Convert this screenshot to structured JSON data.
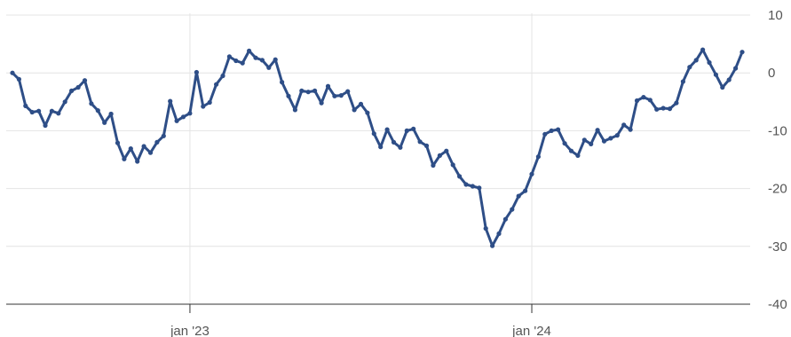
{
  "chart_data": {
    "type": "line",
    "title": "",
    "xlabel": "",
    "ylabel": "",
    "x_start": "2022-06-27",
    "x_interval_days": 7,
    "x_ticks": [
      {
        "label": "jan '23",
        "date": "2023-01-02"
      },
      {
        "label": "jan '24",
        "date": "2024-01-01"
      }
    ],
    "y_ticks": [
      {
        "label": "10",
        "value": 10
      },
      {
        "label": "0",
        "value": 0
      },
      {
        "label": "-10",
        "value": -10
      },
      {
        "label": "-20",
        "value": -20
      },
      {
        "label": "-30",
        "value": -30
      },
      {
        "label": "-40",
        "value": -40
      }
    ],
    "ylim": [
      -40,
      10
    ],
    "grid": true,
    "line_color": "#2e4e87",
    "series": [
      {
        "values": [
          0.0,
          -1.1,
          -5.7,
          -6.8,
          -6.6,
          -9.1,
          -6.6,
          -7.0,
          -5.0,
          -3.1,
          -2.5,
          -1.3,
          -5.3,
          -6.5,
          -8.6,
          -7.1,
          -12.1,
          -14.9,
          -13.1,
          -15.3,
          -12.7,
          -13.8,
          -12.0,
          -10.9,
          -4.9,
          -8.3,
          -7.6,
          -7.0,
          0.1,
          -5.8,
          -5.1,
          -2.0,
          -0.5,
          2.8,
          2.1,
          1.7,
          3.8,
          2.6,
          2.2,
          0.9,
          2.3,
          -1.6,
          -4.0,
          -6.4,
          -3.1,
          -3.3,
          -3.1,
          -5.2,
          -2.3,
          -4.0,
          -3.9,
          -3.2,
          -6.4,
          -5.4,
          -6.9,
          -10.5,
          -12.8,
          -9.8,
          -12.0,
          -12.9,
          -10.0,
          -9.7,
          -11.9,
          -12.6,
          -16.0,
          -14.3,
          -13.5,
          -15.9,
          -17.9,
          -19.3,
          -19.6,
          -19.9,
          -26.9,
          -29.9,
          -27.8,
          -25.3,
          -23.6,
          -21.3,
          -20.4,
          -17.5,
          -14.5,
          -10.6,
          -10.0,
          -9.8,
          -12.2,
          -13.5,
          -14.3,
          -11.6,
          -12.3,
          -9.9,
          -11.8,
          -11.3,
          -10.8,
          -9.0,
          -9.8,
          -4.8,
          -4.2,
          -4.7,
          -6.3,
          -6.1,
          -6.2,
          -5.2,
          -1.5,
          1.0,
          2.2,
          4.0,
          1.8,
          -0.3,
          -2.5,
          -1.2,
          0.8,
          3.6
        ]
      }
    ]
  }
}
